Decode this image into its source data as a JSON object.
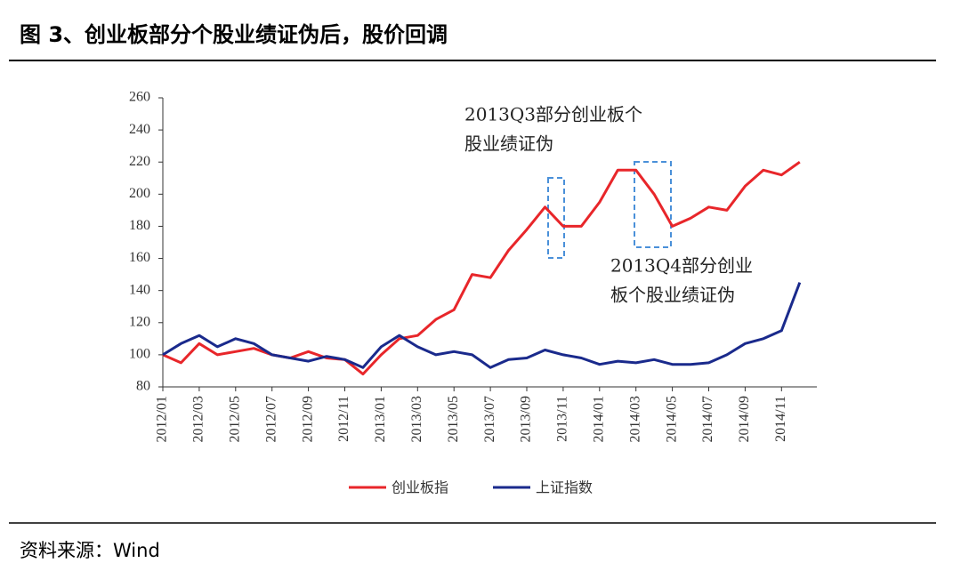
{
  "title": "图 3、创业板部分个股业绩证伪后，股价回调",
  "source": "资料来源：Wind",
  "chart_data": {
    "type": "line",
    "categories": [
      "2012/01",
      null,
      "2012/03",
      null,
      "2012/05",
      null,
      "2012/07",
      null,
      "2012/09",
      null,
      "2012/11",
      null,
      "2013/01",
      null,
      "2013/03",
      null,
      "2013/05",
      null,
      "2013/07",
      null,
      "2013/09",
      null,
      "2013/11",
      null,
      "2014/01",
      null,
      "2014/03",
      null,
      "2014/05",
      null,
      "2014/07",
      null,
      "2014/09",
      null,
      "2014/11",
      null
    ],
    "series": [
      {
        "name": "创业板指",
        "color": "#e8262a",
        "values": [
          100,
          95,
          107,
          100,
          102,
          104,
          100,
          98,
          102,
          98,
          97,
          88,
          100,
          110,
          112,
          122,
          128,
          150,
          148,
          165,
          178,
          192,
          180,
          180,
          195,
          215,
          215,
          200,
          180,
          185,
          192,
          190,
          205,
          215,
          212,
          220
        ]
      },
      {
        "name": "上证指数",
        "color": "#1a2a8c",
        "values": [
          100,
          107,
          112,
          105,
          110,
          107,
          100,
          98,
          96,
          99,
          97,
          92,
          105,
          112,
          105,
          100,
          102,
          100,
          92,
          97,
          98,
          103,
          100,
          98,
          94,
          96,
          95,
          97,
          94,
          94,
          95,
          100,
          107,
          110,
          115,
          145
        ]
      }
    ],
    "ylim": [
      80,
      260
    ],
    "yticks": [
      80,
      100,
      120,
      140,
      160,
      180,
      200,
      220,
      240,
      260
    ],
    "annotations": [
      {
        "lines": [
          "2013Q3部分创业板个",
          "股业绩证伪"
        ]
      },
      {
        "lines": [
          "2013Q4部分创业",
          "板个股业绩证伪"
        ]
      }
    ]
  }
}
